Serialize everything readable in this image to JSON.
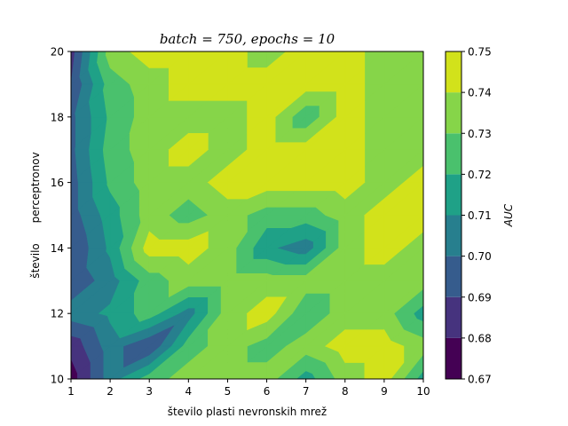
{
  "chart_data": {
    "type": "contour",
    "title": "batch = 750, epochs = 10",
    "xlabel": "število plasti nevronskih mrež",
    "ylabel": "število      perceptronov",
    "colorbar_label": "AUC",
    "xlim": [
      1,
      10
    ],
    "ylim": [
      10,
      20
    ],
    "x_ticks": [
      "1",
      "2",
      "3",
      "4",
      "5",
      "6",
      "7",
      "8",
      "9",
      "10"
    ],
    "y_ticks": [
      "10",
      "12",
      "14",
      "16",
      "18",
      "20"
    ],
    "levels": [
      0.67,
      0.68,
      0.69,
      0.7,
      0.71,
      0.72,
      0.73,
      0.74,
      0.75
    ],
    "colorbar_ticks": [
      "0.67",
      "0.68",
      "0.69",
      "0.70",
      "0.71",
      "0.72",
      "0.73",
      "0.74",
      "0.75"
    ],
    "level_colors": [
      "#440154",
      "#46337e",
      "#365c8d",
      "#277f8e",
      "#1fa187",
      "#4ac16d",
      "#86d549",
      "#d2e21b"
    ],
    "x": [
      1,
      2,
      3,
      4,
      5,
      6,
      7,
      8,
      9,
      10
    ],
    "y": [
      10,
      11,
      12,
      13,
      14,
      15,
      16,
      17,
      18,
      19,
      20
    ],
    "z": [
      [
        0.675,
        0.705,
        0.725,
        0.735,
        0.735,
        0.735,
        0.715,
        0.735,
        0.745,
        0.715
      ],
      [
        0.683,
        0.705,
        0.69,
        0.725,
        0.735,
        0.725,
        0.735,
        0.745,
        0.745,
        0.735
      ],
      [
        0.705,
        0.712,
        0.725,
        0.705,
        0.735,
        0.745,
        0.722,
        0.735,
        0.735,
        0.715
      ],
      [
        0.692,
        0.705,
        0.725,
        0.735,
        0.735,
        0.735,
        0.735,
        0.735,
        0.735,
        0.735
      ],
      [
        0.69,
        0.712,
        0.745,
        0.745,
        0.735,
        0.712,
        0.704,
        0.735,
        0.745,
        0.735
      ],
      [
        0.695,
        0.715,
        0.735,
        0.725,
        0.735,
        0.725,
        0.725,
        0.735,
        0.745,
        0.745
      ],
      [
        0.695,
        0.722,
        0.735,
        0.735,
        0.745,
        0.745,
        0.745,
        0.745,
        0.735,
        0.745
      ],
      [
        0.697,
        0.725,
        0.735,
        0.745,
        0.735,
        0.745,
        0.745,
        0.745,
        0.735,
        0.735
      ],
      [
        0.697,
        0.722,
        0.735,
        0.735,
        0.735,
        0.745,
        0.722,
        0.745,
        0.735,
        0.735
      ],
      [
        0.69,
        0.725,
        0.735,
        0.745,
        0.745,
        0.745,
        0.745,
        0.745,
        0.735,
        0.735
      ],
      [
        0.685,
        0.735,
        0.745,
        0.745,
        0.745,
        0.735,
        0.745,
        0.745,
        0.735,
        0.735
      ]
    ]
  }
}
